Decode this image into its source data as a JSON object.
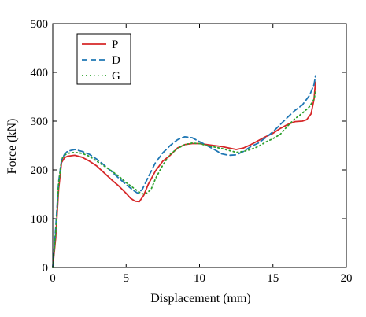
{
  "chart_data": {
    "type": "line",
    "xlabel": "Displacement (mm)",
    "ylabel": "Force (kN)",
    "xlim": [
      0,
      20
    ],
    "ylim": [
      0,
      500
    ],
    "xticks": [
      0,
      5,
      10,
      15,
      20
    ],
    "yticks": [
      0,
      100,
      200,
      300,
      400,
      500
    ],
    "grid": false,
    "legend_position": "top-left",
    "series": [
      {
        "name": "P",
        "color": "#d62728",
        "line_style": "solid",
        "points": [
          [
            0,
            0
          ],
          [
            0.2,
            60
          ],
          [
            0.4,
            160
          ],
          [
            0.6,
            215
          ],
          [
            0.8,
            225
          ],
          [
            1,
            228
          ],
          [
            1.5,
            230
          ],
          [
            2,
            226
          ],
          [
            2.5,
            218
          ],
          [
            3,
            208
          ],
          [
            3.5,
            194
          ],
          [
            4,
            180
          ],
          [
            4.5,
            167
          ],
          [
            5,
            152
          ],
          [
            5.3,
            142
          ],
          [
            5.6,
            136
          ],
          [
            5.9,
            135
          ],
          [
            6.2,
            148
          ],
          [
            6.5,
            170
          ],
          [
            7,
            198
          ],
          [
            7.5,
            218
          ],
          [
            8,
            230
          ],
          [
            8.5,
            245
          ],
          [
            9,
            252
          ],
          [
            9.5,
            254
          ],
          [
            10,
            254
          ],
          [
            10.5,
            252
          ],
          [
            11,
            250
          ],
          [
            11.5,
            248
          ],
          [
            12,
            245
          ],
          [
            12.5,
            242
          ],
          [
            13,
            245
          ],
          [
            13.5,
            252
          ],
          [
            14,
            260
          ],
          [
            14.5,
            268
          ],
          [
            15,
            275
          ],
          [
            15.5,
            285
          ],
          [
            16,
            293
          ],
          [
            16.5,
            299
          ],
          [
            17,
            300
          ],
          [
            17.3,
            303
          ],
          [
            17.6,
            315
          ],
          [
            17.8,
            345
          ],
          [
            17.9,
            380
          ]
        ]
      },
      {
        "name": "D",
        "color": "#1f77b4",
        "line_style": "dashed",
        "points": [
          [
            0,
            0
          ],
          [
            0.2,
            80
          ],
          [
            0.4,
            175
          ],
          [
            0.6,
            220
          ],
          [
            0.8,
            232
          ],
          [
            1,
            238
          ],
          [
            1.5,
            242
          ],
          [
            2,
            238
          ],
          [
            2.5,
            232
          ],
          [
            3,
            222
          ],
          [
            3.5,
            210
          ],
          [
            4,
            197
          ],
          [
            4.5,
            183
          ],
          [
            5,
            170
          ],
          [
            5.5,
            158
          ],
          [
            5.8,
            152
          ],
          [
            6.1,
            160
          ],
          [
            6.5,
            185
          ],
          [
            7,
            215
          ],
          [
            7.5,
            235
          ],
          [
            8,
            250
          ],
          [
            8.5,
            262
          ],
          [
            9,
            268
          ],
          [
            9.5,
            266
          ],
          [
            10,
            258
          ],
          [
            10.5,
            250
          ],
          [
            11,
            242
          ],
          [
            11.5,
            233
          ],
          [
            12,
            230
          ],
          [
            12.5,
            231
          ],
          [
            13,
            238
          ],
          [
            13.5,
            248
          ],
          [
            14,
            255
          ],
          [
            14.5,
            266
          ],
          [
            15,
            278
          ],
          [
            15.5,
            293
          ],
          [
            16,
            308
          ],
          [
            16.5,
            322
          ],
          [
            17,
            333
          ],
          [
            17.5,
            353
          ],
          [
            17.8,
            375
          ],
          [
            17.9,
            393
          ]
        ]
      },
      {
        "name": "G",
        "color": "#2ca02c",
        "line_style": "dotted",
        "points": [
          [
            0,
            0
          ],
          [
            0.2,
            70
          ],
          [
            0.4,
            170
          ],
          [
            0.6,
            222
          ],
          [
            0.8,
            230
          ],
          [
            1,
            234
          ],
          [
            1.5,
            236
          ],
          [
            2,
            234
          ],
          [
            2.5,
            228
          ],
          [
            3,
            218
          ],
          [
            3.5,
            208
          ],
          [
            4,
            198
          ],
          [
            4.5,
            187
          ],
          [
            5,
            174
          ],
          [
            5.5,
            163
          ],
          [
            6,
            152
          ],
          [
            6.3,
            150
          ],
          [
            6.7,
            160
          ],
          [
            7,
            182
          ],
          [
            7.5,
            210
          ],
          [
            8,
            232
          ],
          [
            8.5,
            244
          ],
          [
            9,
            252
          ],
          [
            9.5,
            255
          ],
          [
            10,
            254
          ],
          [
            10.5,
            250
          ],
          [
            11,
            247
          ],
          [
            11.5,
            244
          ],
          [
            12,
            240
          ],
          [
            12.5,
            236
          ],
          [
            13,
            238
          ],
          [
            13.5,
            242
          ],
          [
            14,
            248
          ],
          [
            14.5,
            257
          ],
          [
            15,
            264
          ],
          [
            15.5,
            273
          ],
          [
            16,
            290
          ],
          [
            16.5,
            305
          ],
          [
            17,
            316
          ],
          [
            17.5,
            330
          ],
          [
            17.8,
            345
          ],
          [
            17.9,
            360
          ]
        ]
      }
    ]
  }
}
